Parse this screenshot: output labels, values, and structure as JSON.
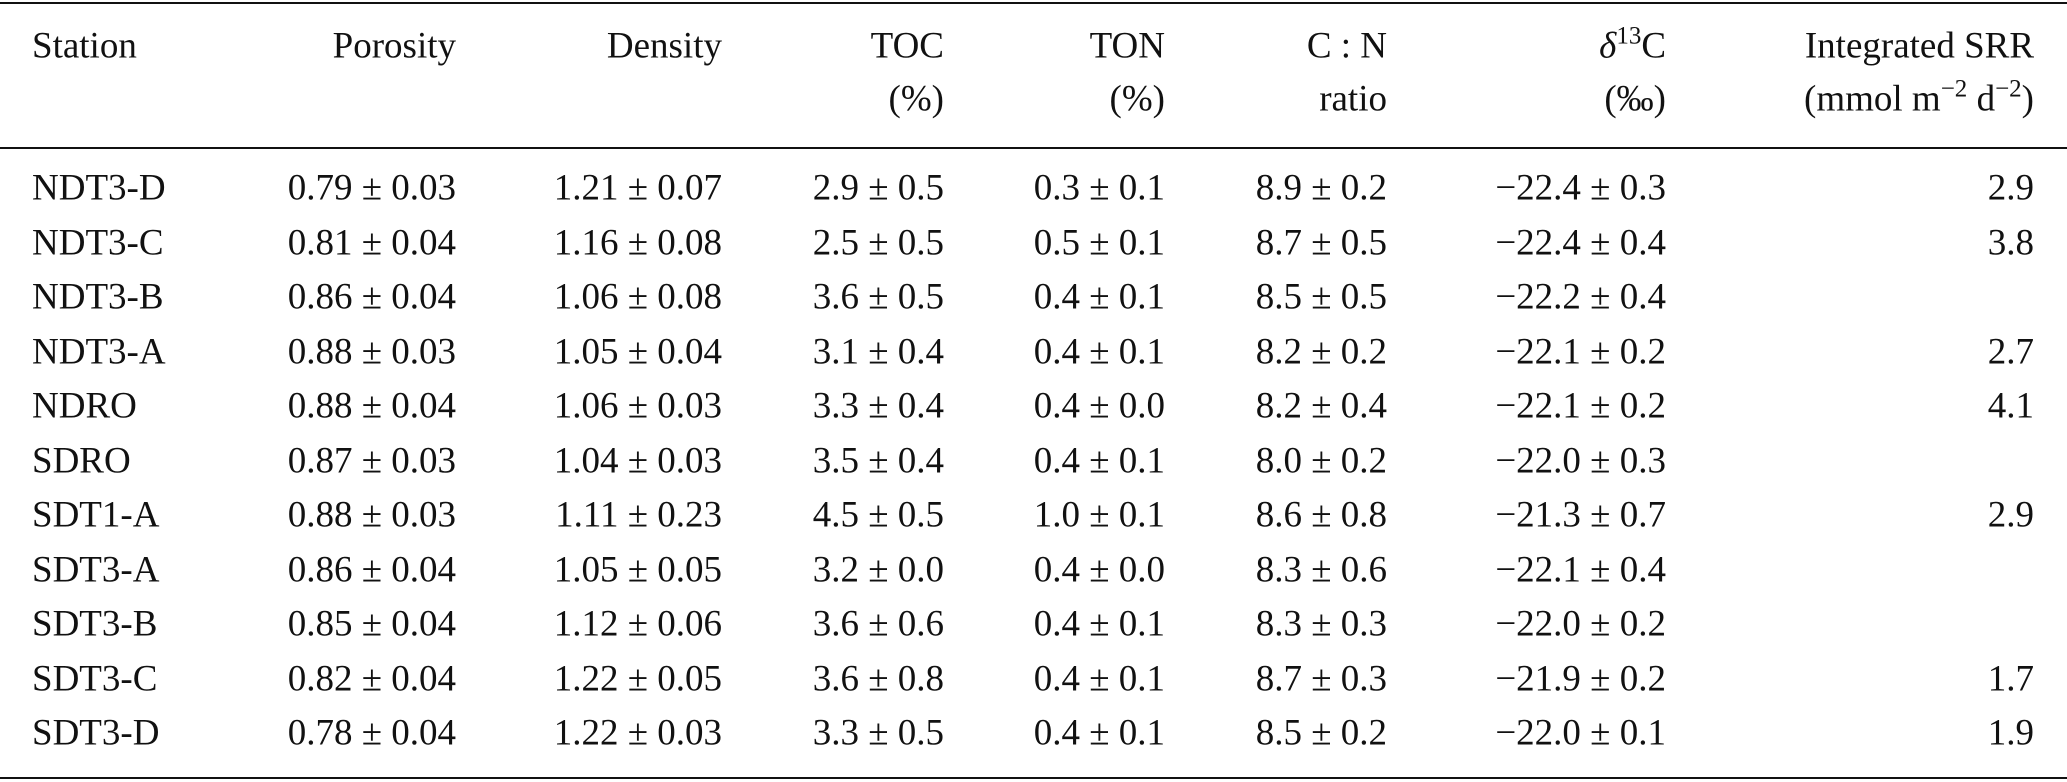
{
  "table": {
    "columns": [
      {
        "lines": [
          [
            {
              "text": "Station"
            }
          ]
        ]
      },
      {
        "lines": [
          [
            {
              "text": "Porosity"
            }
          ]
        ]
      },
      {
        "lines": [
          [
            {
              "text": "Density"
            }
          ]
        ]
      },
      {
        "lines": [
          [
            {
              "text": "TOC"
            }
          ],
          [
            {
              "text": "(%)"
            }
          ]
        ]
      },
      {
        "lines": [
          [
            {
              "text": "TON"
            }
          ],
          [
            {
              "text": "(%)"
            }
          ]
        ]
      },
      {
        "lines": [
          [
            {
              "text": "C : N"
            }
          ],
          [
            {
              "text": "ratio"
            }
          ]
        ]
      },
      {
        "lines": [
          [
            {
              "text": "δ",
              "italic": true
            },
            {
              "text": "13",
              "sup": true
            },
            {
              "text": "C"
            }
          ],
          [
            {
              "text": "(‰)"
            }
          ]
        ]
      },
      {
        "lines": [
          [
            {
              "text": "Integrated SRR"
            }
          ],
          [
            {
              "text": "(mmol m"
            },
            {
              "text": "−2",
              "sup": true
            },
            {
              "text": " d"
            },
            {
              "text": "−2",
              "sup": true
            },
            {
              "text": ")"
            }
          ]
        ]
      }
    ],
    "rows": [
      [
        "NDT3-D",
        "0.79 ± 0.03",
        "1.21 ± 0.07",
        "2.9 ± 0.5",
        "0.3 ± 0.1",
        "8.9 ± 0.2",
        "−22.4 ± 0.3",
        2.9
      ],
      [
        "NDT3-C",
        "0.81 ± 0.04",
        "1.16 ± 0.08",
        "2.5 ± 0.5",
        "0.5 ± 0.1",
        "8.7 ± 0.5",
        "−22.4 ± 0.4",
        3.8
      ],
      [
        "NDT3-B",
        "0.86 ± 0.04",
        "1.06 ± 0.08",
        "3.6 ± 0.5",
        "0.4 ± 0.1",
        "8.5 ± 0.5",
        "−22.2 ± 0.4",
        null
      ],
      [
        "NDT3-A",
        "0.88 ± 0.03",
        "1.05 ± 0.04",
        "3.1 ± 0.4",
        "0.4 ± 0.1",
        "8.2 ± 0.2",
        "−22.1 ± 0.2",
        2.7
      ],
      [
        "NDRO",
        "0.88 ± 0.04",
        "1.06 ± 0.03",
        "3.3 ± 0.4",
        "0.4 ± 0.0",
        "8.2 ± 0.4",
        "−22.1 ± 0.2",
        4.1
      ],
      [
        "SDRO",
        "0.87 ± 0.03",
        "1.04 ± 0.03",
        "3.5 ± 0.4",
        "0.4 ± 0.1",
        "8.0 ± 0.2",
        "−22.0 ± 0.3",
        null
      ],
      [
        "SDT1-A",
        "0.88 ± 0.03",
        "1.11 ± 0.23",
        "4.5 ± 0.5",
        "1.0 ± 0.1",
        "8.6 ± 0.8",
        "−21.3 ± 0.7",
        2.9
      ],
      [
        "SDT3-A",
        "0.86 ± 0.04",
        "1.05 ± 0.05",
        "3.2 ± 0.0",
        "0.4 ± 0.0",
        "8.3 ± 0.6",
        "−22.1 ± 0.4",
        null
      ],
      [
        "SDT3-B",
        "0.85 ± 0.04",
        "1.12 ± 0.06",
        "3.6 ± 0.6",
        "0.4 ± 0.1",
        "8.3 ± 0.3",
        "−22.0 ± 0.2",
        null
      ],
      [
        "SDT3-C",
        "0.82 ± 0.04",
        "1.22 ± 0.05",
        "3.6 ± 0.8",
        "0.4 ± 0.1",
        "8.7 ± 0.3",
        "−21.9 ± 0.2",
        1.7
      ],
      [
        "SDT3-D",
        "0.78 ± 0.04",
        "1.22 ± 0.03",
        "3.3 ± 0.5",
        "0.4 ± 0.1",
        "8.5 ± 0.2",
        "−22.0 ± 0.1",
        1.9
      ]
    ]
  }
}
